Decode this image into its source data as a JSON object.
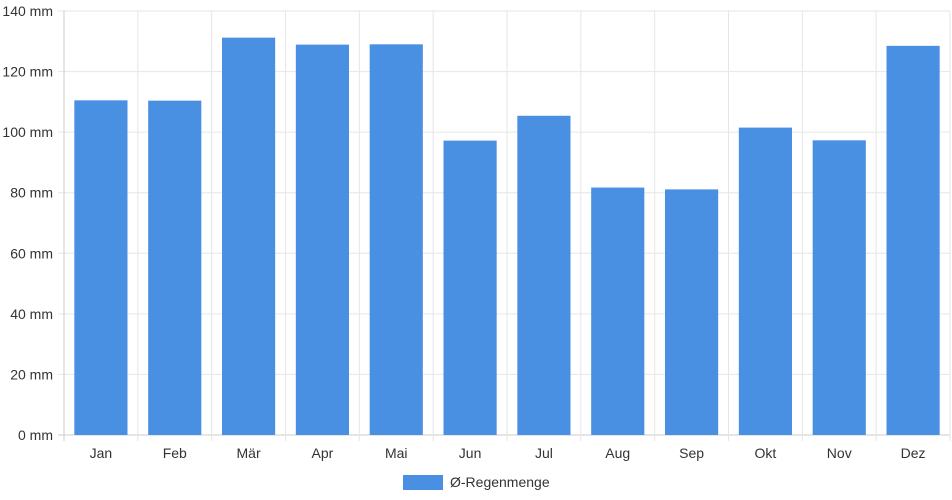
{
  "chart_data": {
    "type": "bar",
    "categories": [
      "Jan",
      "Feb",
      "Mär",
      "Apr",
      "Mai",
      "Jun",
      "Jul",
      "Aug",
      "Sep",
      "Okt",
      "Nov",
      "Dez"
    ],
    "series": [
      {
        "name": "Ø-Regenmenge",
        "values": [
          110.5,
          110.4,
          131.2,
          128.9,
          129.0,
          97.2,
          105.4,
          81.7,
          81.1,
          101.5,
          97.3,
          128.5
        ]
      }
    ],
    "y_unit": "mm",
    "ylim": [
      0,
      140
    ],
    "y_ticks": [
      0,
      20,
      40,
      60,
      80,
      100,
      120,
      140
    ],
    "grid": true,
    "legend_position": "bottom",
    "colors": {
      "bar": "#4a90e2",
      "grid": "#e6e6e6",
      "axis": "#cccccc"
    }
  }
}
